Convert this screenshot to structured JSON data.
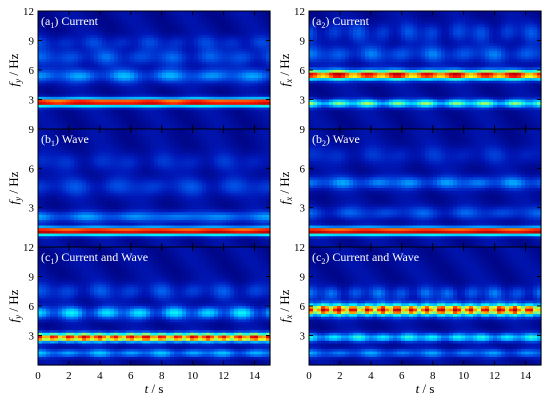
{
  "figure": {
    "background_color": "#000a8c",
    "colormap": [
      "#00007a",
      "#0018b8",
      "#0050e6",
      "#00a8ff",
      "#00eeff",
      "#64ff98",
      "#ecff1e",
      "#ff9400",
      "#ff1600",
      "#b50000"
    ],
    "x_ticks": [
      "0",
      "2",
      "4",
      "6",
      "8",
      "10",
      "12",
      "14"
    ],
    "x_label_var": "t",
    "x_label_unit": "/ s"
  },
  "chart_data": [
    {
      "type": "heatmap",
      "panel": "a1",
      "label_prefix": "(a",
      "label_sub": "1",
      "label_suffix": ") Current",
      "ylabel_var": "f",
      "ylabel_sub": "y",
      "ylabel_unit": " / Hz",
      "xlim": [
        0,
        15
      ],
      "ylim": [
        0,
        12
      ],
      "y_ticks": [
        "3",
        "6",
        "9",
        "12"
      ],
      "show_x_tick_labels": false,
      "bands": [
        {
          "freq": 2.7,
          "amplitude": 0.95,
          "width": 0.28,
          "modulation": 0.05,
          "period": 2.5
        },
        {
          "freq": 5.4,
          "amplitude": 0.28,
          "width": 0.5,
          "modulation": 0.5,
          "period": 2.8
        },
        {
          "freq": 7.3,
          "amplitude": 0.18,
          "width": 0.6,
          "modulation": 0.5,
          "period": 2.2
        },
        {
          "freq": 8.8,
          "amplitude": 0.12,
          "width": 0.5,
          "modulation": 0.5,
          "period": 1.8
        }
      ]
    },
    {
      "type": "heatmap",
      "panel": "a2",
      "label_prefix": "(a",
      "label_sub": "2",
      "label_suffix": ") Current",
      "ylabel_var": "f",
      "ylabel_sub": "x",
      "ylabel_unit": " / Hz",
      "xlim": [
        0,
        15
      ],
      "ylim": [
        0,
        12
      ],
      "y_ticks": [
        "3",
        "6",
        "9",
        "12"
      ],
      "show_x_tick_labels": false,
      "bands": [
        {
          "freq": 5.5,
          "amplitude": 0.95,
          "width": 0.35,
          "modulation": 0.25,
          "period": 1.9
        },
        {
          "freq": 2.6,
          "amplitude": 0.55,
          "width": 0.28,
          "modulation": 0.45,
          "period": 1.9
        },
        {
          "freq": 7.6,
          "amplitude": 0.2,
          "width": 0.6,
          "modulation": 0.5,
          "period": 2.0
        },
        {
          "freq": 9.8,
          "amplitude": 0.15,
          "width": 0.7,
          "modulation": 0.6,
          "period": 1.6
        }
      ]
    },
    {
      "type": "heatmap",
      "panel": "b1",
      "label_prefix": "(b",
      "label_sub": "1",
      "label_suffix": ") Wave",
      "ylabel_var": "f",
      "ylabel_sub": "y",
      "ylabel_unit": " / Hz",
      "xlim": [
        0,
        15
      ],
      "ylim": [
        0,
        9
      ],
      "y_ticks": [
        "3",
        "6",
        "9"
      ],
      "show_x_tick_labels": false,
      "bands": [
        {
          "freq": 1.2,
          "amplitude": 0.97,
          "width": 0.2,
          "modulation": 0.02,
          "period": 3.0
        },
        {
          "freq": 2.3,
          "amplitude": 0.25,
          "width": 0.3,
          "modulation": 0.3,
          "period": 3.0
        },
        {
          "freq": 4.6,
          "amplitude": 0.15,
          "width": 0.5,
          "modulation": 0.5,
          "period": 2.5
        },
        {
          "freq": 6.5,
          "amplitude": 0.1,
          "width": 0.5,
          "modulation": 0.5,
          "period": 2.0
        }
      ]
    },
    {
      "type": "heatmap",
      "panel": "b2",
      "label_prefix": "(b",
      "label_sub": "2",
      "label_suffix": ") Wave",
      "ylabel_var": "f",
      "ylabel_sub": "x",
      "ylabel_unit": " / Hz",
      "xlim": [
        0,
        15
      ],
      "ylim": [
        0,
        9
      ],
      "y_ticks": [
        "3",
        "6",
        "9"
      ],
      "show_x_tick_labels": false,
      "bands": [
        {
          "freq": 1.2,
          "amplitude": 0.97,
          "width": 0.2,
          "modulation": 0.02,
          "period": 3.0
        },
        {
          "freq": 4.9,
          "amplitude": 0.25,
          "width": 0.35,
          "modulation": 0.4,
          "period": 2.2
        },
        {
          "freq": 2.6,
          "amplitude": 0.18,
          "width": 0.35,
          "modulation": 0.5,
          "period": 2.5
        },
        {
          "freq": 7.0,
          "amplitude": 0.1,
          "width": 0.5,
          "modulation": 0.5,
          "period": 2.0
        }
      ]
    },
    {
      "type": "heatmap",
      "panel": "c1",
      "label_prefix": "(c",
      "label_sub": "1",
      "label_suffix": ")  Current and Wave",
      "ylabel_var": "f",
      "ylabel_sub": "y",
      "ylabel_unit": " / Hz",
      "xlim": [
        0,
        15
      ],
      "ylim": [
        0,
        12
      ],
      "y_ticks": [
        "3",
        "6",
        "9",
        "12"
      ],
      "show_x_tick_labels": true,
      "bands": [
        {
          "freq": 2.8,
          "amplitude": 0.9,
          "width": 0.32,
          "modulation": 0.25,
          "period": 1.0
        },
        {
          "freq": 1.2,
          "amplitude": 0.3,
          "width": 0.3,
          "modulation": 0.4,
          "period": 2.0
        },
        {
          "freq": 5.3,
          "amplitude": 0.38,
          "width": 0.45,
          "modulation": 0.6,
          "period": 2.2
        },
        {
          "freq": 7.5,
          "amplitude": 0.16,
          "width": 0.6,
          "modulation": 0.6,
          "period": 2.0
        }
      ]
    },
    {
      "type": "heatmap",
      "panel": "c2",
      "label_prefix": "(c",
      "label_sub": "2",
      "label_suffix": ") Current and Wave",
      "ylabel_var": "f",
      "ylabel_sub": "x",
      "ylabel_unit": " / Hz",
      "xlim": [
        0,
        15
      ],
      "ylim": [
        0,
        12
      ],
      "y_ticks": [
        "3",
        "6",
        "9",
        "12"
      ],
      "show_x_tick_labels": true,
      "bands": [
        {
          "freq": 5.6,
          "amplitude": 0.95,
          "width": 0.42,
          "modulation": 0.35,
          "period": 0.95
        },
        {
          "freq": 2.8,
          "amplitude": 0.42,
          "width": 0.3,
          "modulation": 0.4,
          "period": 1.6
        },
        {
          "freq": 1.2,
          "amplitude": 0.25,
          "width": 0.3,
          "modulation": 0.4,
          "period": 2.0
        },
        {
          "freq": 7.3,
          "amplitude": 0.2,
          "width": 0.5,
          "modulation": 0.6,
          "period": 1.5
        }
      ]
    }
  ]
}
